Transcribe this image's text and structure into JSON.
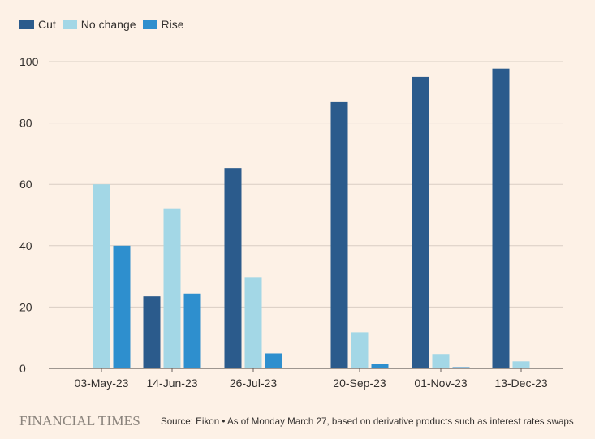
{
  "chart_data": {
    "type": "bar",
    "title": "",
    "xlabel": "",
    "ylabel": "",
    "categories": [
      "03-May-23",
      "14-Jun-23",
      "26-Jul-23",
      "20-Sep-23",
      "01-Nov-23",
      "13-Dec-23"
    ],
    "series": [
      {
        "name": "Cut",
        "color": "#2b5b8c",
        "values": [
          0,
          23.5,
          65.3,
          86.8,
          95,
          97.7
        ]
      },
      {
        "name": "No change",
        "color": "#a3d7e6",
        "values": [
          60,
          52.2,
          29.8,
          11.8,
          4.7,
          2.3
        ]
      },
      {
        "name": "Rise",
        "color": "#2e8fce",
        "values": [
          40,
          24.4,
          4.9,
          1.4,
          0.4,
          0.1
        ]
      }
    ],
    "ylim": [
      0,
      100
    ],
    "yticks": [
      0,
      20,
      40,
      60,
      80,
      100
    ],
    "grid": true,
    "legend": "top-left"
  },
  "footer": {
    "brand": "FINANCIAL TIMES",
    "source": "Source: Eikon • As of Monday March 27, based on derivative products such as interest rates swaps"
  }
}
